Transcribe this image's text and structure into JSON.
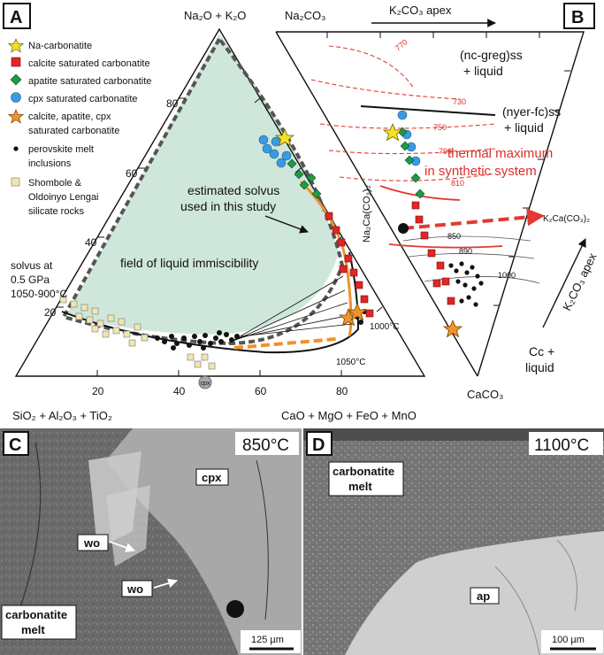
{
  "panels": {
    "A": "A",
    "B": "B",
    "C": "C",
    "D": "D"
  },
  "ternary_A": {
    "apex_top": "Na₂O + K₂O",
    "apex_left": "SiO₂ + Al₂O₃ + TiO₂",
    "apex_right": "CaO + MgO + FeO + MnO",
    "left_ticks": [
      "20",
      "40",
      "60",
      "80"
    ],
    "bottom_ticks": [
      "20",
      "40",
      "60",
      "80"
    ],
    "fill_color": "#cfe7da",
    "solvus_label_line1": "estimated solvus",
    "solvus_label_line2": "used in this study",
    "immiscibility_label": "field of liquid immiscibility",
    "solvus_05_line1": "solvus at",
    "solvus_05_line2": "0.5 GPa",
    "solvus_05_line3": "1050-900°C",
    "temp_1000": "1000°C",
    "temp_1050": "1050°C",
    "cpx_label": "cpx"
  },
  "legend": [
    {
      "symbol": "star",
      "color": "#f5e12a",
      "text": "Na-carbonatite"
    },
    {
      "symbol": "square",
      "color": "#e02626",
      "text": "calcite saturated carbonatite"
    },
    {
      "symbol": "diamond",
      "color": "#1f9a48",
      "text": "apatite saturated carbonatite"
    },
    {
      "symbol": "circle",
      "color": "#3a9be0",
      "text": "cpx saturated carbonatite"
    },
    {
      "symbol": "star",
      "color": "#f0922b",
      "text": "calcite, apatite, cpx",
      "text2": "saturated carbonatite"
    },
    {
      "symbol": "dot",
      "color": "#111111",
      "text": "perovskite melt",
      "text2": "inclusions"
    },
    {
      "symbol": "square",
      "color": "#f1e6b0",
      "text": "Shombole &",
      "text2": "Oldoinyo Lengai",
      "text3": "silicate rocks"
    }
  ],
  "ternary_B": {
    "apex_top": "Na₂CO₃",
    "apex_arrow": "K₂CO₃ apex",
    "side_na2ca": "Na₂Ca(CO₃)₂",
    "apex_bottom": "CaCO₃",
    "k2co3_side": "K₂CO₃ apex",
    "field_ncgreg": "(nc-greg)ss",
    "field_ncgreg_liq": "+ liquid",
    "field_nyer": "(nyer-fc)ss",
    "field_nyer_liq": "+ liquid",
    "thermal_1": "thermal maximum",
    "thermal_2": "in synthetic system",
    "k2ca": "K₂Ca(CO₃)₂",
    "cc_liq_1": "Cc +",
    "cc_liq_2": "liquid",
    "isotherms_red": [
      "770",
      "730",
      "750",
      "790",
      "810"
    ],
    "isotherms_black": [
      "850",
      "890",
      "1000"
    ],
    "accent_red": "#e23a31"
  },
  "micro_C": {
    "temp": "850°C",
    "cpx": "cpx",
    "wo1": "wo",
    "wo2": "wo",
    "melt1": "carbonatite",
    "melt2": "melt",
    "scale": "125 µm"
  },
  "micro_D": {
    "temp": "1100°C",
    "melt1": "carbonatite",
    "melt2": "melt",
    "ap": "ap",
    "scale": "100 µm"
  }
}
